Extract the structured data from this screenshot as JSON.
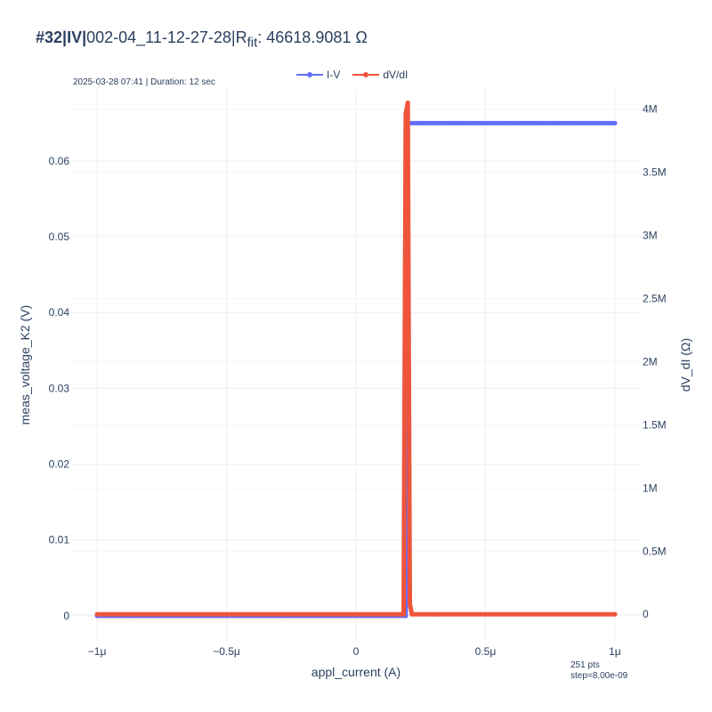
{
  "title": {
    "prefix": "#32|IV|",
    "name": "002-04_11-12-27-28|R",
    "sub": "fit",
    "value": ": 46618.9081 Ω"
  },
  "subtitle": "2025-03-28 07:41 | Duration: 12 sec",
  "footnote": {
    "points": "251 pts",
    "step": "step=8.00e-09"
  },
  "colors": {
    "iv": "#636efa",
    "dvdi": "#ef553b",
    "text": "#2a3f5f",
    "grid": "#ebeef3"
  },
  "chart_data": {
    "type": "line",
    "xlabel": "appl_current (A)",
    "ylabel": "meas_voltage_K2 (V)",
    "y2label": "dV_dI (Ω)",
    "xlim": [
      -1.1e-06,
      1.1e-06
    ],
    "ylim": [
      -0.0033,
      0.0695
    ],
    "y2lim": [
      -210000,
      4160000
    ],
    "xticks": [
      -1e-06,
      -5e-07,
      0,
      5e-07,
      1e-06
    ],
    "xticklabels": [
      "−1μ",
      "−0.5μ",
      "0",
      "0.5μ",
      "1μ"
    ],
    "yticks": [
      0,
      0.01,
      0.02,
      0.03,
      0.04,
      0.05,
      0.06
    ],
    "yticklabels": [
      "0",
      "0.01",
      "0.02",
      "0.03",
      "0.04",
      "0.05",
      "0.06"
    ],
    "y2ticks": [
      0,
      500000,
      1000000,
      1500000,
      2000000,
      2500000,
      3000000,
      3500000,
      4000000
    ],
    "y2ticklabels": [
      "0",
      "0.5M",
      "1M",
      "1.5M",
      "2M",
      "2.5M",
      "3M",
      "3.5M",
      "4M"
    ],
    "grid": true,
    "legend": "top-center",
    "series": [
      {
        "name": "I-V",
        "axis": "y",
        "x": [
          -1e-06,
          1.84e-07,
          1.92e-07,
          2e-07,
          1e-06
        ],
        "y": [
          0,
          0,
          0,
          0.065,
          0.065
        ]
      },
      {
        "name": "dV/dI",
        "axis": "y2",
        "x": [
          -1e-06,
          1.84e-07,
          1.92e-07,
          2e-07,
          2.08e-07,
          2.16e-07,
          3e-07,
          1e-06
        ],
        "y": [
          0,
          0,
          3960000,
          4050000,
          80000,
          0,
          0,
          0
        ]
      }
    ]
  }
}
